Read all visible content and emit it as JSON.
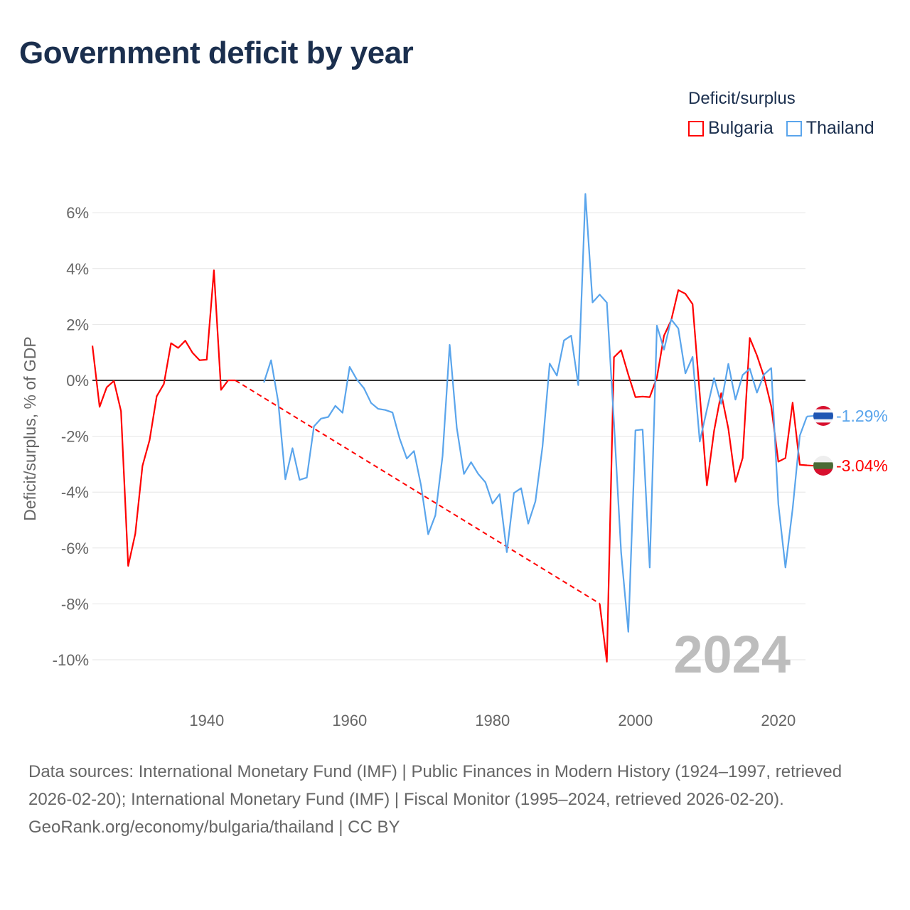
{
  "title": "Government deficit by year",
  "legend": {
    "title": "Deficit/surplus",
    "items": [
      {
        "label": "Bulgaria",
        "color": "#ff0000"
      },
      {
        "label": "Thailand",
        "color": "#5aa5ec"
      }
    ]
  },
  "chart_data": {
    "type": "line",
    "title": "Government deficit by year",
    "xlabel": "",
    "ylabel": "Deficit/surplus, % of GDP",
    "xlim": [
      1924,
      2024
    ],
    "ylim": [
      -10,
      6
    ],
    "x_ticks": [
      "1940",
      "1960",
      "1980",
      "2000",
      "2020"
    ],
    "x_tick_values": [
      1940,
      1960,
      1980,
      2000,
      2020
    ],
    "y_ticks": [
      "6%",
      "4%",
      "2%",
      "0%",
      "-2%",
      "-4%",
      "-6%",
      "-8%",
      "-10%"
    ],
    "y_tick_values": [
      6,
      4,
      2,
      0,
      -2,
      -4,
      -6,
      -8,
      -10
    ],
    "grid": true,
    "legend_position": "top-right",
    "current_year_label": "2024",
    "series": [
      {
        "name": "Bulgaria",
        "color": "#ff0000",
        "end_label": "-3.04%",
        "points": [
          [
            1924,
            1.24
          ],
          [
            1925,
            -0.95
          ],
          [
            1926,
            -0.25
          ],
          [
            1927,
            -0.02
          ],
          [
            1928,
            -1.1
          ],
          [
            1929,
            -6.64
          ],
          [
            1930,
            -5.49
          ],
          [
            1931,
            -3.06
          ],
          [
            1932,
            -2.14
          ],
          [
            1933,
            -0.57
          ],
          [
            1934,
            -0.13
          ],
          [
            1935,
            1.33
          ],
          [
            1936,
            1.16
          ],
          [
            1937,
            1.42
          ],
          [
            1938,
            0.99
          ],
          [
            1939,
            0.72
          ],
          [
            1940,
            0.74
          ],
          [
            1941,
            3.94
          ],
          [
            1942,
            -0.34
          ],
          [
            1943,
            0
          ],
          [
            1944,
            0
          ],
          [
            1995,
            -7.99
          ],
          [
            1996,
            -10.07
          ],
          [
            1997,
            0.83
          ],
          [
            1998,
            1.08
          ],
          [
            1999,
            0.2
          ],
          [
            2000,
            -0.6
          ],
          [
            2001,
            -0.58
          ],
          [
            2002,
            -0.6
          ],
          [
            2003,
            0.1
          ],
          [
            2004,
            1.6
          ],
          [
            2005,
            2.15
          ],
          [
            2006,
            3.23
          ],
          [
            2007,
            3.1
          ],
          [
            2008,
            2.73
          ],
          [
            2009,
            -0.5
          ],
          [
            2010,
            -3.76
          ],
          [
            2011,
            -1.81
          ],
          [
            2012,
            -0.46
          ],
          [
            2013,
            -1.73
          ],
          [
            2014,
            -3.63
          ],
          [
            2015,
            -2.78
          ],
          [
            2016,
            1.52
          ],
          [
            2017,
            0.89
          ],
          [
            2018,
            0.13
          ],
          [
            2019,
            -0.93
          ],
          [
            2020,
            -2.91
          ],
          [
            2021,
            -2.78
          ],
          [
            2022,
            -0.8
          ],
          [
            2023,
            -3.02
          ],
          [
            2024,
            -3.04
          ]
        ]
      },
      {
        "name": "Thailand",
        "color": "#5aa5ec",
        "end_label": "-1.29%",
        "points": [
          [
            1948,
            -0.08
          ],
          [
            1949,
            0.72
          ],
          [
            1950,
            -0.76
          ],
          [
            1951,
            -3.54
          ],
          [
            1952,
            -2.43
          ],
          [
            1953,
            -3.56
          ],
          [
            1954,
            -3.48
          ],
          [
            1955,
            -1.65
          ],
          [
            1956,
            -1.37
          ],
          [
            1957,
            -1.31
          ],
          [
            1958,
            -0.91
          ],
          [
            1959,
            -1.16
          ],
          [
            1960,
            0.48
          ],
          [
            1961,
            0.03
          ],
          [
            1962,
            -0.28
          ],
          [
            1963,
            -0.81
          ],
          [
            1964,
            -1.02
          ],
          [
            1965,
            -1.06
          ],
          [
            1966,
            -1.15
          ],
          [
            1967,
            -2.08
          ],
          [
            1968,
            -2.8
          ],
          [
            1969,
            -2.53
          ],
          [
            1970,
            -3.77
          ],
          [
            1971,
            -5.51
          ],
          [
            1972,
            -4.83
          ],
          [
            1973,
            -2.71
          ],
          [
            1974,
            1.27
          ],
          [
            1975,
            -1.7
          ],
          [
            1976,
            -3.35
          ],
          [
            1977,
            -2.93
          ],
          [
            1978,
            -3.35
          ],
          [
            1979,
            -3.65
          ],
          [
            1980,
            -4.41
          ],
          [
            1981,
            -4.07
          ],
          [
            1982,
            -6.15
          ],
          [
            1983,
            -4.03
          ],
          [
            1984,
            -3.86
          ],
          [
            1985,
            -5.13
          ],
          [
            1986,
            -4.33
          ],
          [
            1987,
            -2.37
          ],
          [
            1988,
            0.6
          ],
          [
            1989,
            0.17
          ],
          [
            1990,
            1.43
          ],
          [
            1991,
            1.6
          ],
          [
            1992,
            -0.17
          ],
          [
            1993,
            6.67
          ],
          [
            1994,
            2.79
          ],
          [
            1995,
            3.07
          ],
          [
            1996,
            2.78
          ],
          [
            1997,
            -1.5
          ],
          [
            1998,
            -6.17
          ],
          [
            1999,
            -9.0
          ],
          [
            2000,
            -1.79
          ],
          [
            2001,
            -1.76
          ],
          [
            2002,
            -6.7
          ],
          [
            2003,
            1.96
          ],
          [
            2004,
            1.1
          ],
          [
            2005,
            2.18
          ],
          [
            2006,
            1.86
          ],
          [
            2007,
            0.25
          ],
          [
            2008,
            0.84
          ],
          [
            2009,
            -2.19
          ],
          [
            2010,
            -1.05
          ],
          [
            2011,
            0.08
          ],
          [
            2012,
            -0.84
          ],
          [
            2013,
            0.59
          ],
          [
            2014,
            -0.69
          ],
          [
            2015,
            0.19
          ],
          [
            2016,
            0.42
          ],
          [
            2017,
            -0.44
          ],
          [
            2018,
            0.21
          ],
          [
            2019,
            0.44
          ],
          [
            2020,
            -4.43
          ],
          [
            2021,
            -6.7
          ],
          [
            2022,
            -4.6
          ],
          [
            2023,
            -1.98
          ],
          [
            2024,
            -1.29
          ]
        ]
      }
    ]
  },
  "footer": {
    "sources": "Data sources: International Monetary Fund (IMF) | Public Finances in Modern History (1924–1997, retrieved 2026-02-20); International Monetary Fund (IMF) | Fiscal Monitor (1995–2024, retrieved 2026-02-20).",
    "credit": "GeoRank.org/economy/bulgaria/thailand | CC BY"
  }
}
